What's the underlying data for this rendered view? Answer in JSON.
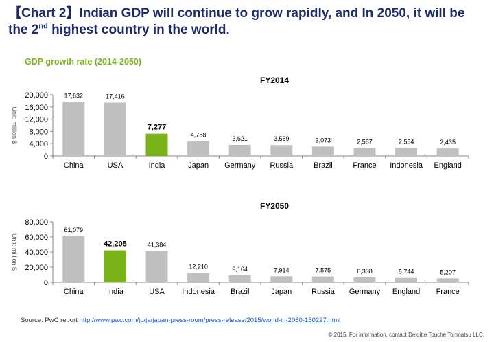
{
  "slide": {
    "title_line1": "【Chart 2】Indian GDP will continue to grow rapidly, and In 2050, it will be",
    "title_line2_pre": "the 2",
    "title_line2_sup": "nd",
    "title_line2_post": " highest country in the world.",
    "subtitle": "GDP growth rate (2014-2050)"
  },
  "footer": {
    "source_prefix": "Source: PwC report ",
    "source_link": "http://www.pwc.com/jp/ja/japan-press-room/press-release/2015/world-in-2050-150227.html",
    "copyright": "© 2015. For information, contact Deloitte Touche Tohmatsu LLC."
  },
  "colors": {
    "bar": "#c0c0c0",
    "highlight": "#7ab317",
    "title": "#1b2b6b"
  },
  "chart_data": [
    {
      "type": "bar",
      "title": "FY2014",
      "ylabel": "Unit: million $",
      "xlabel": "",
      "ylim": [
        0,
        20000
      ],
      "yticks": [
        "0",
        "4,000",
        "8,000",
        "12,000",
        "16,000",
        "20,000"
      ],
      "categories": [
        "China",
        "USA",
        "India",
        "Japan",
        "Germany",
        "Russia",
        "Brazil",
        "France",
        "Indonesia",
        "England"
      ],
      "values": [
        17632,
        17416,
        7277,
        4788,
        3621,
        3559,
        3073,
        2587,
        2554,
        2435
      ],
      "labels": [
        "17,632",
        "17,416",
        "7,277",
        "4,788",
        "3,621",
        "3,559",
        "3,073",
        "2,587",
        "2,554",
        "2,435"
      ],
      "highlight": "India",
      "grid": false
    },
    {
      "type": "bar",
      "title": "FY2050",
      "ylabel": "Unit: million $",
      "xlabel": "",
      "ylim": [
        0,
        80000
      ],
      "yticks": [
        "0",
        "20,000",
        "40,000",
        "60,000",
        "80,000"
      ],
      "categories": [
        "China",
        "India",
        "USA",
        "Indonesia",
        "Brazil",
        "Japan",
        "Russia",
        "Germany",
        "England",
        "France"
      ],
      "values": [
        61079,
        42205,
        41384,
        12210,
        9164,
        7914,
        7575,
        6338,
        5744,
        5207
      ],
      "labels": [
        "61,079",
        "42,205",
        "41,384",
        "12,210",
        "9,164",
        "7,914",
        "7,575",
        "6,338",
        "5,744",
        "5,207"
      ],
      "highlight": "India",
      "grid": false
    }
  ]
}
